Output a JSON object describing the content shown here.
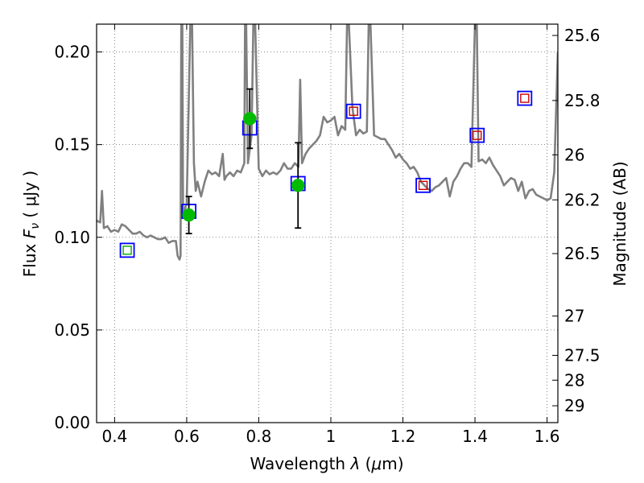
{
  "chart_data": {
    "type": "line",
    "xlabel": "Wavelength",
    "xlabel_symbol": "λ",
    "xlabel_unit_open": " (",
    "xlabel_unit_mu": "μ",
    "xlabel_unit_rest": "m)",
    "ylabel": "Flux",
    "ylabel_symbol": "F",
    "ylabel_symbol_sub": "ν",
    "ylabel_unit": "  ( μJy )",
    "y2label": "Magnitude (AB)",
    "xlim": [
      0.35,
      1.63
    ],
    "ylim": [
      0,
      0.215
    ],
    "xticks": [
      0.4,
      0.6,
      0.8,
      1.0,
      1.2,
      1.4,
      1.6
    ],
    "xtick_labels": [
      "0.4",
      "0.6",
      "0.8",
      "1",
      "1.2",
      "1.4",
      "1.6"
    ],
    "yticks": [
      0.0,
      0.05,
      0.1,
      0.15,
      0.2
    ],
    "ytick_labels": [
      "0.00",
      "0.05",
      "0.10",
      "0.15",
      "0.20"
    ],
    "y2ticks": [
      {
        "label": "25.6",
        "flux": 0.2089
      },
      {
        "label": "25.8",
        "flux": 0.1738
      },
      {
        "label": "26",
        "flux": 0.1445
      },
      {
        "label": "26.2",
        "flux": 0.1202
      },
      {
        "label": "26.5",
        "flux": 0.0912
      },
      {
        "label": "27",
        "flux": 0.0575
      },
      {
        "label": "27.5",
        "flux": 0.0363
      },
      {
        "label": "28",
        "flux": 0.0229
      },
      {
        "label": "29",
        "flux": 0.0091
      }
    ],
    "grid": true,
    "series": [
      {
        "kind": "spectrum",
        "color": "#808080",
        "x": [
          0.35,
          0.36,
          0.365,
          0.37,
          0.38,
          0.39,
          0.4,
          0.41,
          0.42,
          0.43,
          0.44,
          0.45,
          0.46,
          0.47,
          0.48,
          0.49,
          0.5,
          0.51,
          0.52,
          0.53,
          0.54,
          0.55,
          0.56,
          0.57,
          0.575,
          0.58,
          0.583,
          0.585,
          0.588,
          0.59,
          0.6,
          0.61,
          0.615,
          0.62,
          0.625,
          0.63,
          0.64,
          0.65,
          0.66,
          0.67,
          0.68,
          0.69,
          0.7,
          0.705,
          0.71,
          0.72,
          0.73,
          0.74,
          0.75,
          0.76,
          0.762,
          0.765,
          0.77,
          0.78,
          0.785,
          0.79,
          0.8,
          0.81,
          0.82,
          0.83,
          0.84,
          0.85,
          0.86,
          0.87,
          0.88,
          0.89,
          0.9,
          0.91,
          0.915,
          0.92,
          0.93,
          0.94,
          0.95,
          0.96,
          0.97,
          0.98,
          0.99,
          1.0,
          1.01,
          1.02,
          1.03,
          1.04,
          1.045,
          1.05,
          1.06,
          1.07,
          1.08,
          1.09,
          1.1,
          1.105,
          1.11,
          1.12,
          1.13,
          1.14,
          1.15,
          1.16,
          1.17,
          1.18,
          1.19,
          1.2,
          1.21,
          1.22,
          1.23,
          1.24,
          1.25,
          1.26,
          1.27,
          1.28,
          1.29,
          1.3,
          1.31,
          1.32,
          1.33,
          1.34,
          1.35,
          1.36,
          1.37,
          1.38,
          1.39,
          1.4,
          1.405,
          1.41,
          1.42,
          1.43,
          1.44,
          1.45,
          1.46,
          1.47,
          1.48,
          1.49,
          1.5,
          1.51,
          1.52,
          1.53,
          1.54,
          1.55,
          1.56,
          1.57,
          1.58,
          1.59,
          1.6,
          1.61,
          1.62,
          1.63
        ],
        "y": [
          0.109,
          0.108,
          0.125,
          0.105,
          0.106,
          0.103,
          0.104,
          0.103,
          0.107,
          0.106,
          0.104,
          0.102,
          0.102,
          0.103,
          0.101,
          0.1,
          0.101,
          0.1,
          0.099,
          0.099,
          0.1,
          0.097,
          0.098,
          0.098,
          0.09,
          0.088,
          0.09,
          0.215,
          0.215,
          0.113,
          0.118,
          0.215,
          0.215,
          0.14,
          0.125,
          0.13,
          0.122,
          0.13,
          0.136,
          0.134,
          0.135,
          0.133,
          0.145,
          0.131,
          0.133,
          0.135,
          0.133,
          0.136,
          0.135,
          0.14,
          0.215,
          0.215,
          0.14,
          0.155,
          0.215,
          0.215,
          0.137,
          0.133,
          0.136,
          0.134,
          0.135,
          0.134,
          0.136,
          0.14,
          0.137,
          0.137,
          0.14,
          0.138,
          0.185,
          0.14,
          0.145,
          0.148,
          0.15,
          0.152,
          0.155,
          0.165,
          0.162,
          0.163,
          0.165,
          0.155,
          0.16,
          0.158,
          0.215,
          0.215,
          0.17,
          0.155,
          0.158,
          0.156,
          0.157,
          0.215,
          0.215,
          0.155,
          0.154,
          0.153,
          0.153,
          0.15,
          0.147,
          0.143,
          0.145,
          0.142,
          0.14,
          0.137,
          0.138,
          0.135,
          0.13,
          0.128,
          0.126,
          0.125,
          0.127,
          0.128,
          0.13,
          0.132,
          0.122,
          0.13,
          0.133,
          0.137,
          0.14,
          0.14,
          0.138,
          0.215,
          0.215,
          0.141,
          0.142,
          0.14,
          0.143,
          0.139,
          0.136,
          0.133,
          0.128,
          0.13,
          0.132,
          0.131,
          0.125,
          0.13,
          0.121,
          0.125,
          0.126,
          0.123,
          0.122,
          0.121,
          0.12,
          0.121,
          0.135,
          0.2
        ]
      },
      {
        "kind": "model_photometry_blue_boxes",
        "color": "#0000ff",
        "points": [
          {
            "x": 0.435,
            "y": 0.093
          },
          {
            "x": 0.606,
            "y": 0.114
          },
          {
            "x": 0.775,
            "y": 0.159
          },
          {
            "x": 0.909,
            "y": 0.129
          },
          {
            "x": 1.063,
            "y": 0.168
          },
          {
            "x": 1.256,
            "y": 0.128
          },
          {
            "x": 1.406,
            "y": 0.155
          },
          {
            "x": 1.538,
            "y": 0.175
          }
        ]
      },
      {
        "kind": "upper_limit_red_boxes",
        "color": "#cc0000",
        "points": [
          {
            "x": 1.063,
            "y": 0.168
          },
          {
            "x": 1.256,
            "y": 0.128
          },
          {
            "x": 1.406,
            "y": 0.155
          },
          {
            "x": 1.538,
            "y": 0.175
          }
        ]
      },
      {
        "kind": "green_open_box",
        "color": "#00aa00",
        "points": [
          {
            "x": 0.435,
            "y": 0.093
          }
        ]
      },
      {
        "kind": "observed_green_circles_with_errors",
        "color": "#00bb00",
        "points": [
          {
            "x": 0.606,
            "y": 0.112,
            "err": 0.01
          },
          {
            "x": 0.775,
            "y": 0.164,
            "err": 0.016
          },
          {
            "x": 0.909,
            "y": 0.128,
            "err": 0.023
          }
        ]
      }
    ]
  }
}
